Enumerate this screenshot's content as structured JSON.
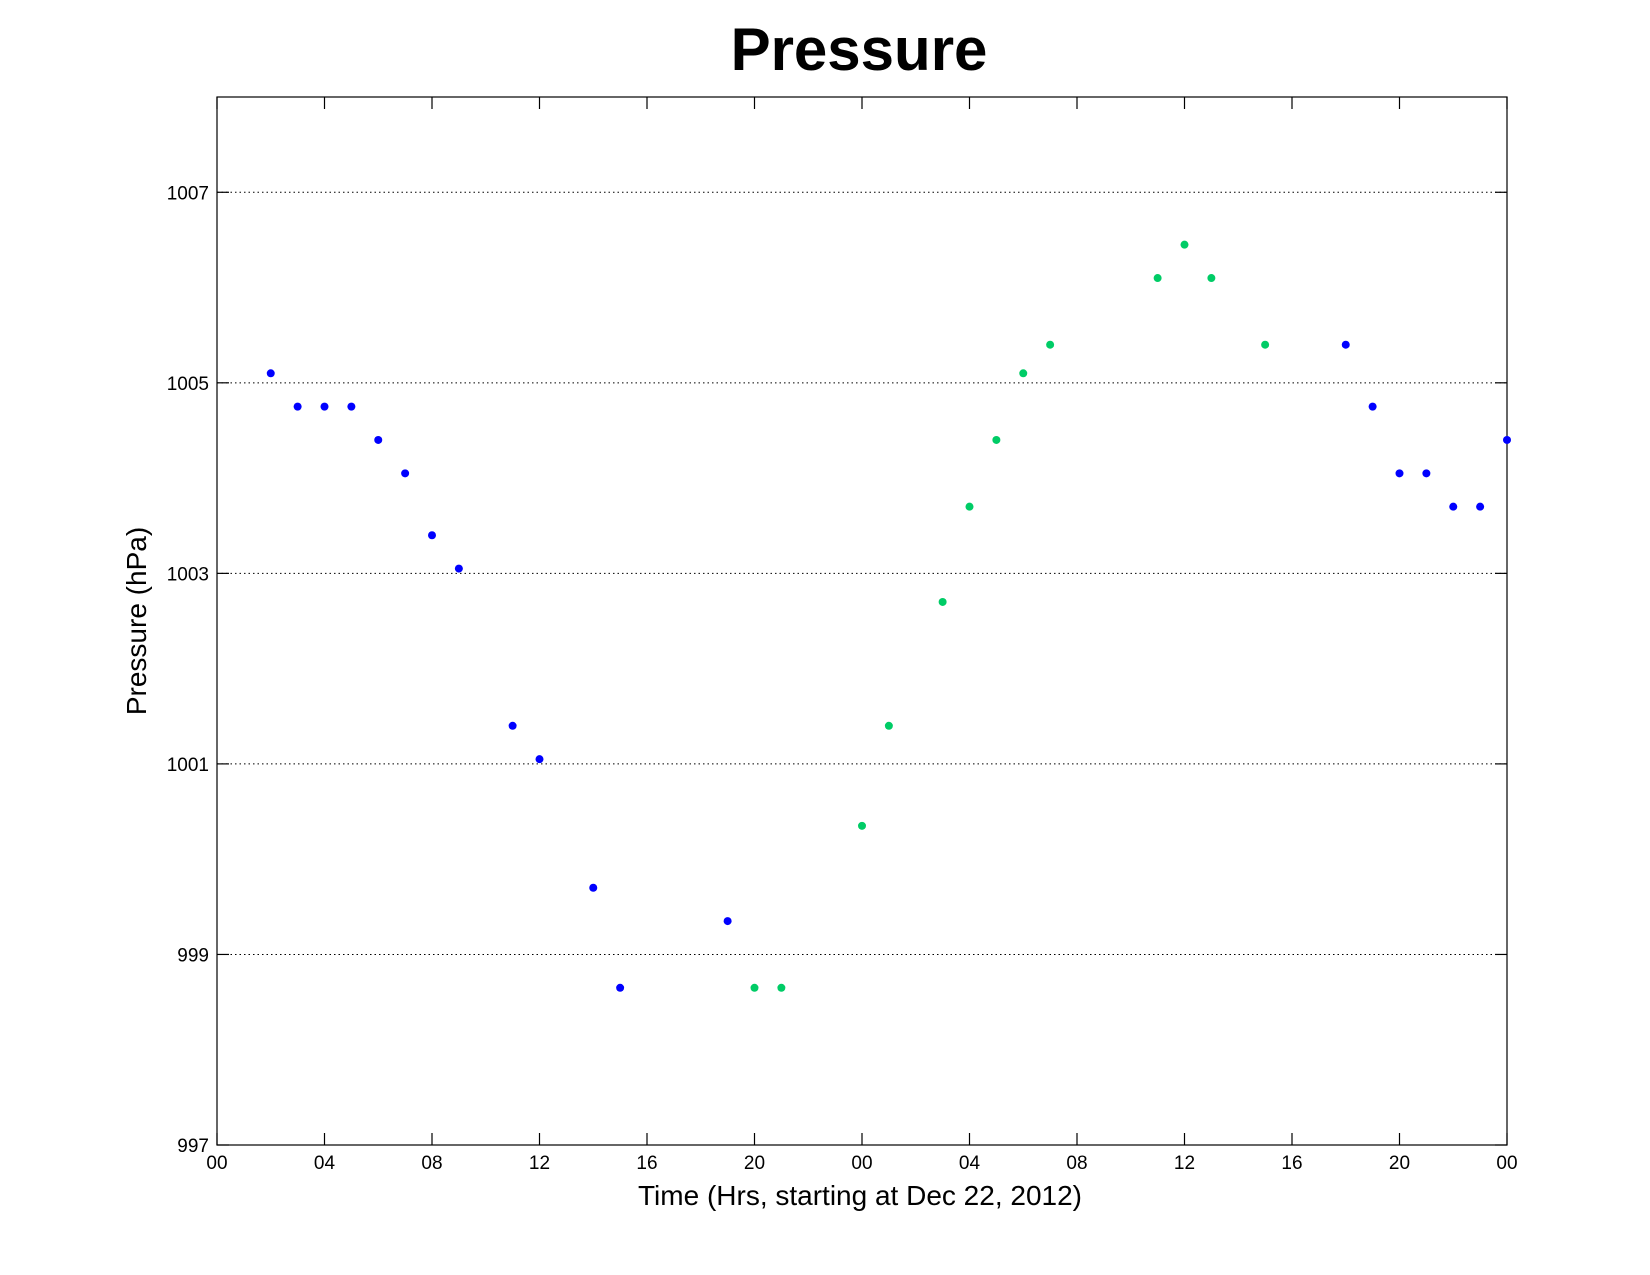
{
  "chart_data": {
    "type": "scatter",
    "title": "Pressure",
    "xlabel": "Time (Hrs, starting at Dec 22, 2012)",
    "ylabel": "Pressure (hPa)",
    "xlim": [
      0,
      48
    ],
    "ylim": [
      997,
      1008
    ],
    "x_ticks": [
      0,
      4,
      8,
      12,
      16,
      20,
      24,
      28,
      32,
      36,
      40,
      44,
      48
    ],
    "x_tick_labels": [
      "00",
      "04",
      "08",
      "12",
      "16",
      "20",
      "00",
      "04",
      "08",
      "12",
      "16",
      "20",
      "00"
    ],
    "y_ticks": [
      997,
      999,
      1001,
      1003,
      1005,
      1007
    ],
    "y_tick_labels": [
      "997",
      "999",
      "1001",
      "1003",
      "1005",
      "1007"
    ],
    "grid": "y-dotted",
    "legend": "none",
    "series": [
      {
        "color": "#0000ff",
        "x": [
          2,
          3,
          4,
          5,
          6,
          7,
          8,
          9,
          11,
          12,
          14,
          15,
          19,
          42,
          43,
          44,
          45,
          46,
          47,
          48
        ],
        "y": [
          1005.1,
          1004.75,
          1004.75,
          1004.75,
          1004.4,
          1004.05,
          1003.4,
          1003.05,
          1001.4,
          1001.05,
          999.7,
          998.65,
          999.35,
          1005.4,
          1004.75,
          1004.05,
          1004.05,
          1003.7,
          1003.7,
          1004.4
        ]
      },
      {
        "color": "#00cc66",
        "x": [
          20,
          21,
          24,
          25,
          27,
          28,
          29,
          30,
          31,
          35,
          36,
          37,
          39
        ],
        "y": [
          998.65,
          998.65,
          1000.35,
          1001.4,
          1002.7,
          1003.7,
          1004.4,
          1005.1,
          1005.4,
          1006.1,
          1006.45,
          1006.1,
          1005.4
        ]
      }
    ]
  }
}
